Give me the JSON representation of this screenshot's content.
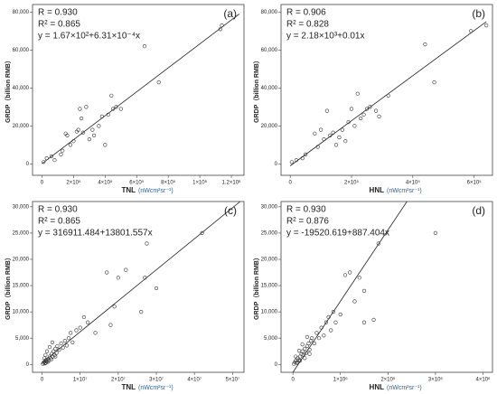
{
  "chart_data": [
    {
      "type": "scatter",
      "panel_label": "(a)",
      "ylabel": "GRDP（billion RMB）",
      "xlabel": "TNL",
      "xunit": "(nWcm²sr⁻¹)",
      "annotations": [
        "R = 0.930",
        "R² = 0.865",
        "y = 1.67×10²+6.31×10⁻⁴x"
      ],
      "xlim": [
        -60000,
        1280000
      ],
      "ylim": [
        -6000,
        84000
      ],
      "xticks": [
        0,
        {
          "value": 200000,
          "label": "2×10⁵"
        },
        {
          "value": 400000,
          "label": "4×10⁵"
        },
        {
          "value": 600000,
          "label": "6×10⁵"
        },
        {
          "value": 800000,
          "label": "8×10⁵"
        },
        {
          "value": 1000000,
          "label": "1×10⁶"
        },
        {
          "value": 1200000,
          "label": "1.2×10⁶"
        }
      ],
      "yticks": [
        0,
        {
          "value": 20000,
          "label": "20,000"
        },
        {
          "value": 40000,
          "label": "40,000"
        },
        {
          "value": 60000,
          "label": "60,000"
        },
        {
          "value": 80000,
          "label": "80,000"
        }
      ],
      "x": [
        10000,
        30000,
        60000,
        80000,
        120000,
        130000,
        150000,
        160000,
        180000,
        200000,
        220000,
        230000,
        240000,
        250000,
        260000,
        280000,
        300000,
        320000,
        330000,
        360000,
        380000,
        400000,
        420000,
        440000,
        450000,
        470000,
        500000,
        650000,
        740000,
        1130000,
        1140000
      ],
      "y": [
        1000,
        3000,
        4000,
        2000,
        5000,
        7000,
        16000,
        15000,
        10000,
        12000,
        17000,
        18000,
        29000,
        24000,
        16500,
        30000,
        13000,
        18000,
        15000,
        20000,
        25000,
        10000,
        26000,
        36000,
        29000,
        30000,
        29000,
        62000,
        43000,
        71000,
        73000
      ],
      "trend_line": {
        "x": [
          0,
          1250000
        ],
        "y": [
          167,
          79000
        ]
      }
    },
    {
      "type": "scatter",
      "panel_label": "(b)",
      "ylabel": "GRDP（billion RMB）",
      "xlabel": "HNL",
      "xunit": "(nWcm²sr⁻¹)",
      "annotations": [
        "R = 0.906",
        "R² = 0.828",
        "y = 2.18×10³+0.01x"
      ],
      "xlim": [
        -30000,
        660000
      ],
      "ylim": [
        -6000,
        84000
      ],
      "xticks": [
        0,
        {
          "value": 200000,
          "label": "2×10⁵"
        },
        {
          "value": 400000,
          "label": "4×10⁵"
        },
        {
          "value": 600000,
          "label": "6×10⁵"
        }
      ],
      "yticks": [
        0,
        {
          "value": 20000,
          "label": "20,000"
        },
        {
          "value": 40000,
          "label": "40,000"
        },
        {
          "value": 60000,
          "label": "60,000"
        },
        {
          "value": 80000,
          "label": "80,000"
        }
      ],
      "x": [
        5000,
        20000,
        40000,
        50000,
        80000,
        90000,
        100000,
        110000,
        120000,
        130000,
        140000,
        150000,
        160000,
        170000,
        180000,
        190000,
        200000,
        210000,
        220000,
        230000,
        240000,
        250000,
        260000,
        280000,
        290000,
        320000,
        440000,
        470000,
        590000,
        640000
      ],
      "y": [
        1000,
        2000,
        3000,
        5000,
        16000,
        9000,
        18000,
        13000,
        28000,
        15000,
        16500,
        10000,
        14000,
        18000,
        12000,
        22000,
        29000,
        20000,
        37000,
        24000,
        26000,
        29000,
        30000,
        28000,
        25000,
        36000,
        63000,
        43000,
        70000,
        73000
      ],
      "trend_line": {
        "x": [
          0,
          640000
        ],
        "y": [
          -1000,
          75000
        ]
      }
    },
    {
      "type": "scatter",
      "panel_label": "(c)",
      "ylabel": "GRDP（billion RMB）",
      "xlabel": "TNL",
      "xunit": "(nWcm²sr⁻¹)",
      "annotations": [
        "R = 0.930",
        "R² = 0.865",
        "y = 316911.484+13801.557x"
      ],
      "xlim": [
        -2500000,
        53000000
      ],
      "ylim": [
        -1500,
        31000
      ],
      "xticks": [
        0,
        {
          "value": 10000000,
          "label": "1×10⁷"
        },
        {
          "value": 20000000,
          "label": "2×10⁷"
        },
        {
          "value": 30000000,
          "label": "3×10⁷"
        },
        {
          "value": 40000000,
          "label": "4×10⁷"
        },
        {
          "value": 50000000,
          "label": "5×10⁷"
        }
      ],
      "yticks": [
        0,
        {
          "value": 5000,
          "label": "5,000"
        },
        {
          "value": 10000,
          "label": "10,000"
        },
        {
          "value": 15000,
          "label": "15,000"
        },
        {
          "value": 20000,
          "label": "20,000"
        },
        {
          "value": 25000,
          "label": "25,000"
        },
        {
          "value": 30000,
          "label": "30,000"
        }
      ],
      "x": [
        200000,
        400000,
        600000,
        800000,
        1000000,
        1200000,
        1500000,
        1800000,
        2000000,
        2200000,
        2500000,
        2800000,
        3000000,
        3300000,
        3500000,
        3800000,
        4000000,
        4500000,
        5000000,
        5500000,
        6000000,
        6500000,
        7000000,
        7500000,
        8000000,
        9000000,
        10000000,
        11000000,
        12000000,
        1000000,
        1500000,
        2500000,
        3500000,
        600000,
        900000,
        1300000,
        2000000,
        2700000,
        14000000,
        17000000,
        18000000,
        19000000,
        20000000,
        22000000,
        26000000,
        27000000,
        27500000,
        30000000,
        42000000
      ],
      "y": [
        100,
        300,
        500,
        200,
        800,
        600,
        1000,
        700,
        1500,
        1200,
        2000,
        1500,
        2500,
        1800,
        3000,
        2200,
        3500,
        2800,
        4000,
        3200,
        4500,
        3600,
        5000,
        6000,
        4200,
        6500,
        7000,
        9000,
        8000,
        300,
        500,
        1000,
        1500,
        1200,
        1800,
        2500,
        3300,
        4200,
        6000,
        17500,
        7500,
        11000,
        16500,
        18000,
        10000,
        16500,
        23000,
        14500,
        25000
      ],
      "trend_line": {
        "x": [
          0,
          52000000
        ],
        "y": [
          300,
          31000
        ]
      }
    },
    {
      "type": "scatter",
      "panel_label": "(d)",
      "ylabel": "GRDP（billion RMB）",
      "xlabel": "HNL",
      "xunit": "(nWcm²sr⁻¹)",
      "annotations": [
        "R = 0.930",
        "R² = 0.876",
        "y = -19520.619+887.404x"
      ],
      "xlim": [
        -250000,
        4200000
      ],
      "ylim": [
        -1500,
        31000
      ],
      "xticks": [
        0,
        {
          "value": 1000000,
          "label": "1×10⁶"
        },
        {
          "value": 2000000,
          "label": "2×10⁶"
        },
        {
          "value": 3000000,
          "label": "3×10⁶"
        },
        {
          "value": 4000000,
          "label": "4×10⁶"
        }
      ],
      "yticks": [
        0,
        {
          "value": 5000,
          "label": "5,000"
        },
        {
          "value": 10000,
          "label": "10,000"
        },
        {
          "value": 15000,
          "label": "15,000"
        },
        {
          "value": 20000,
          "label": "20,000"
        },
        {
          "value": 25000,
          "label": "25,000"
        },
        {
          "value": 30000,
          "label": "30,000"
        }
      ],
      "x": [
        20000,
        40000,
        60000,
        80000,
        100000,
        120000,
        150000,
        180000,
        200000,
        220000,
        250000,
        280000,
        300000,
        330000,
        350000,
        380000,
        400000,
        450000,
        500000,
        550000,
        600000,
        650000,
        700000,
        750000,
        800000,
        850000,
        900000,
        100000,
        150000,
        250000,
        350000,
        60000,
        130000,
        200000,
        300000,
        1000000,
        1100000,
        1200000,
        1300000,
        1400000,
        1500000,
        1500000,
        1700000,
        1800000,
        3000000
      ],
      "y": [
        100,
        400,
        700,
        300,
        1200,
        800,
        1500,
        2000,
        2500,
        1800,
        3000,
        2200,
        3500,
        4000,
        2800,
        4500,
        5000,
        4000,
        6000,
        5000,
        7000,
        5500,
        8000,
        9000,
        6500,
        10000,
        8000,
        400,
        700,
        1200,
        2000,
        1500,
        2600,
        3800,
        5200,
        9500,
        17000,
        17500,
        12000,
        16500,
        14000,
        8000,
        8500,
        23000,
        25000
      ],
      "trend_line": {
        "x": [
          0,
          2400000
        ],
        "y": [
          -1500,
          31000
        ]
      }
    }
  ]
}
